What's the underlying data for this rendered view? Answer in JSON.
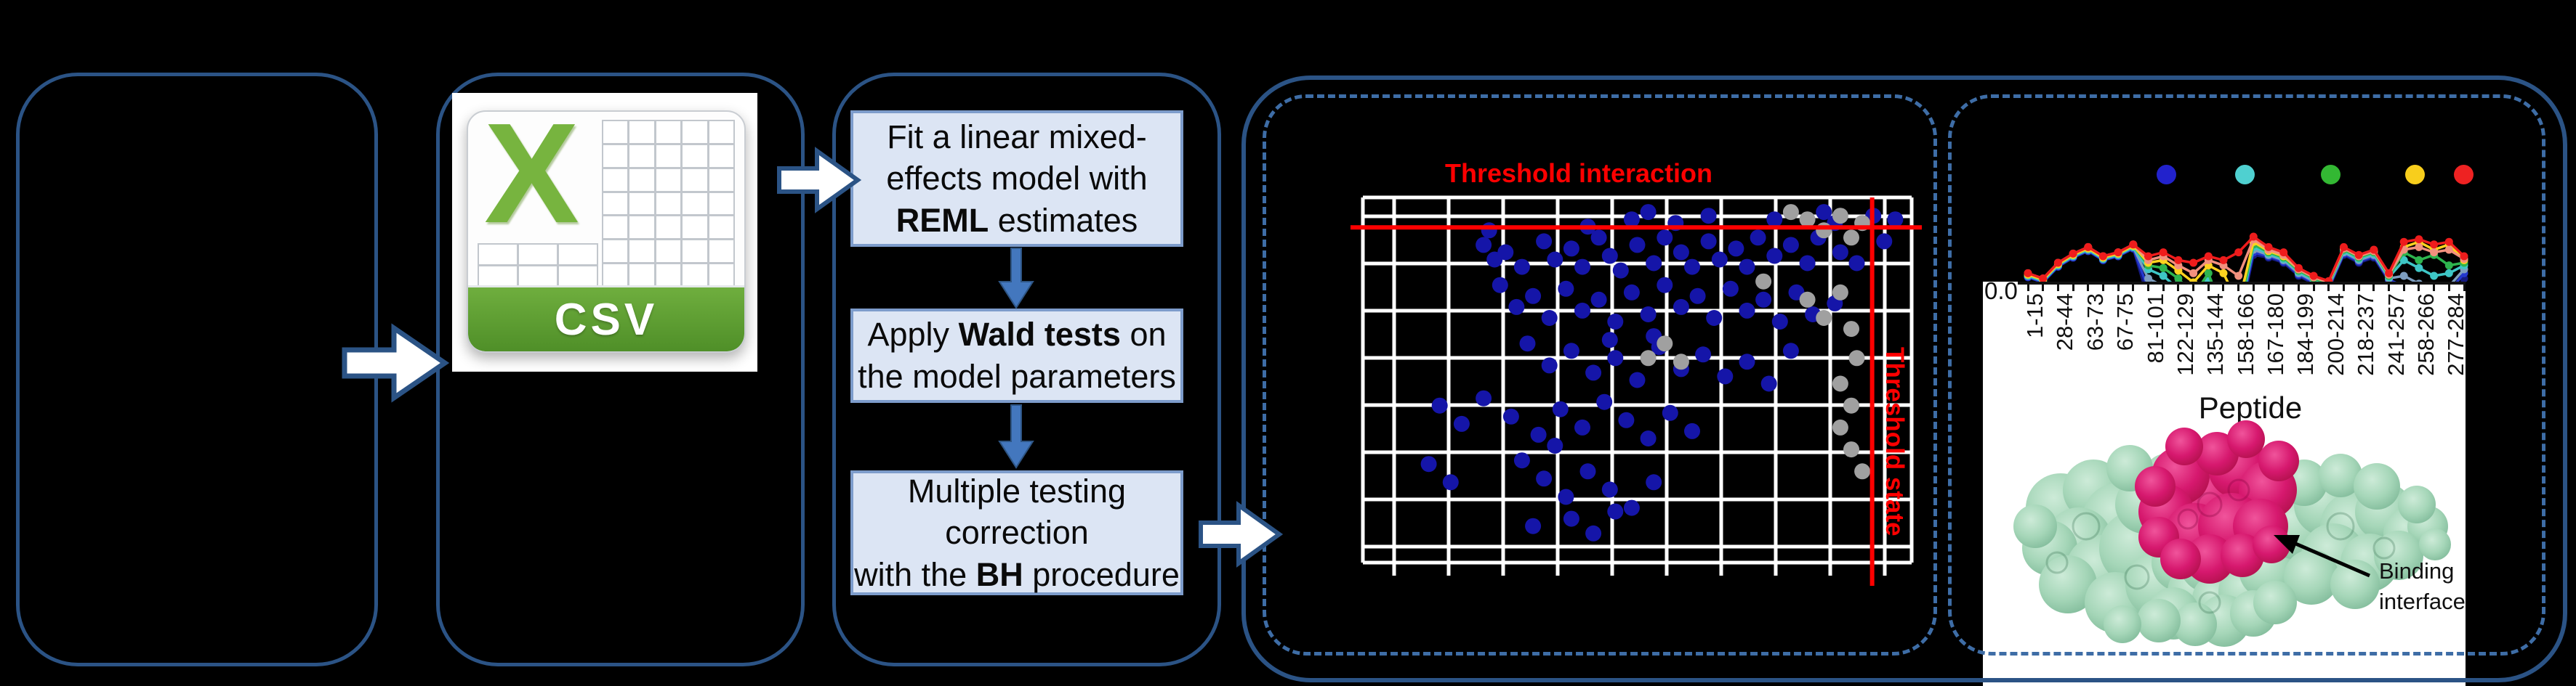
{
  "colors": {
    "background": "#000000",
    "panel_border": "#2B5385",
    "dashed_border": "#3E6DA6",
    "process_box_fill": "#DCE5F4",
    "process_box_border": "#7D9CCB",
    "threshold_red": "#FF0000",
    "scatter_blue": "#1515A8",
    "scatter_gray": "#A0A0A0",
    "csv_green": "#77B43F",
    "protein_green": "#A5D6B8",
    "protein_magenta": "#D6186E"
  },
  "csv": {
    "icon_name": "csv-file-icon",
    "band_label": "CSV",
    "x_glyph": "X"
  },
  "pipeline": {
    "steps": [
      {
        "lines": [
          [
            [
              "Fit a linear mixed-",
              false
            ]
          ],
          [
            [
              "effects model with",
              false
            ]
          ],
          [
            [
              "REML",
              true
            ],
            [
              " estimates",
              false
            ]
          ]
        ]
      },
      {
        "lines": [
          [
            [
              "Apply ",
              false
            ],
            [
              "Wald tests",
              true
            ],
            [
              " on",
              false
            ]
          ],
          [
            [
              "the model parameters",
              false
            ]
          ]
        ]
      },
      {
        "lines": [
          [
            [
              "Multiple testing",
              false
            ]
          ],
          [
            [
              "correction",
              false
            ]
          ],
          [
            [
              "with the ",
              false
            ],
            [
              "BH",
              true
            ],
            [
              " procedure",
              false
            ]
          ]
        ]
      }
    ]
  },
  "scatter_panel": {
    "title": "Threshold interaction",
    "side_label": "Threshold state"
  },
  "peptide_panel": {
    "y_origin_label": "0.0",
    "xlabel": "Peptide",
    "annotation_lines": [
      "Binding",
      "interface"
    ],
    "legend_dot_colors": [
      "#2222CC",
      "#4FD0D0",
      "#33B833",
      "#F8CE1C",
      "#EE2222"
    ]
  },
  "chart_data": [
    {
      "type": "scatter",
      "title": "Threshold interaction",
      "xlabel": "",
      "ylabel": "",
      "grid": true,
      "threshold_interaction_y_pct": 8.2,
      "threshold_state_x_pct": 92.8,
      "series": [
        {
          "name": "significant-blue",
          "color": "#1515A8",
          "points_pct": [
            [
              49,
              6
            ],
            [
              52,
              4
            ],
            [
              57,
              7
            ],
            [
              63,
              5
            ],
            [
              75,
              6
            ],
            [
              84,
              4
            ],
            [
              86,
              7
            ],
            [
              93,
              5
            ],
            [
              97,
              6
            ],
            [
              41,
              8
            ],
            [
              23,
              9
            ],
            [
              22,
              13
            ],
            [
              24,
              17
            ],
            [
              26,
              15
            ],
            [
              29,
              19
            ],
            [
              33,
              12
            ],
            [
              35,
              17
            ],
            [
              38,
              14
            ],
            [
              40,
              19
            ],
            [
              43,
              11
            ],
            [
              45,
              16
            ],
            [
              47,
              20
            ],
            [
              50,
              13
            ],
            [
              53,
              18
            ],
            [
              55,
              11
            ],
            [
              58,
              15
            ],
            [
              60,
              19
            ],
            [
              63,
              12
            ],
            [
              65,
              17
            ],
            [
              68,
              14
            ],
            [
              70,
              19
            ],
            [
              72,
              11
            ],
            [
              75,
              16
            ],
            [
              78,
              13
            ],
            [
              81,
              18
            ],
            [
              83,
              11
            ],
            [
              87,
              15
            ],
            [
              90,
              18
            ],
            [
              95,
              12
            ],
            [
              25,
              24
            ],
            [
              28,
              30
            ],
            [
              31,
              27
            ],
            [
              34,
              33
            ],
            [
              37,
              25
            ],
            [
              40,
              31
            ],
            [
              43,
              28
            ],
            [
              46,
              34
            ],
            [
              49,
              26
            ],
            [
              52,
              32
            ],
            [
              55,
              24
            ],
            [
              58,
              30
            ],
            [
              61,
              27
            ],
            [
              64,
              33
            ],
            [
              67,
              25
            ],
            [
              70,
              31
            ],
            [
              73,
              28
            ],
            [
              76,
              34
            ],
            [
              79,
              26
            ],
            [
              82,
              32
            ],
            [
              86,
              29
            ],
            [
              30,
              40
            ],
            [
              34,
              46
            ],
            [
              38,
              42
            ],
            [
              42,
              48
            ],
            [
              46,
              44
            ],
            [
              50,
              50
            ],
            [
              54,
              41
            ],
            [
              58,
              47
            ],
            [
              62,
              43
            ],
            [
              66,
              49
            ],
            [
              70,
              45
            ],
            [
              74,
              51
            ],
            [
              78,
              42
            ],
            [
              53,
              38
            ],
            [
              45,
              39
            ],
            [
              14,
              57
            ],
            [
              18,
              62
            ],
            [
              22,
              55
            ],
            [
              27,
              60
            ],
            [
              32,
              65
            ],
            [
              36,
              58
            ],
            [
              40,
              63
            ],
            [
              44,
              56
            ],
            [
              48,
              61
            ],
            [
              52,
              66
            ],
            [
              56,
              59
            ],
            [
              60,
              64
            ],
            [
              35,
              68
            ],
            [
              29,
              72
            ],
            [
              33,
              77
            ],
            [
              37,
              82
            ],
            [
              41,
              75
            ],
            [
              45,
              80
            ],
            [
              49,
              85
            ],
            [
              53,
              78
            ],
            [
              38,
              88
            ],
            [
              42,
              92
            ],
            [
              46,
              86
            ],
            [
              31,
              90
            ],
            [
              12,
              73
            ],
            [
              16,
              78
            ]
          ]
        },
        {
          "name": "nonsignificant-gray",
          "color": "#A0A0A0",
          "points_pct": [
            [
              78,
              4
            ],
            [
              81,
              6
            ],
            [
              84,
              9
            ],
            [
              87,
              5
            ],
            [
              89,
              11
            ],
            [
              91,
              7
            ],
            [
              55,
              40
            ],
            [
              58,
              45
            ],
            [
              52,
              44
            ],
            [
              81,
              28
            ],
            [
              84,
              33
            ],
            [
              87,
              26
            ],
            [
              89,
              36
            ],
            [
              90,
              44
            ],
            [
              87,
              51
            ],
            [
              89,
              57
            ],
            [
              87,
              63
            ],
            [
              89,
              69
            ],
            [
              91,
              75
            ],
            [
              73,
              23
            ]
          ]
        }
      ]
    },
    {
      "type": "line",
      "xlabel": "Peptide",
      "ylabel": "",
      "y_origin_label": "0.0",
      "categories": [
        "1-15",
        "28-44",
        "63-73",
        "67-75",
        "81-101",
        "122-129",
        "135-144",
        "158-166",
        "167-180",
        "184-199",
        "200-214",
        "218-237",
        "241-257",
        "258-266",
        "277-284"
      ],
      "points_per_category": 2,
      "series": [
        {
          "name": "navy",
          "color": "#151A80",
          "values": [
            39,
            35,
            47,
            54,
            59,
            52,
            55,
            61,
            22,
            18,
            20,
            3,
            18,
            2,
            3,
            56,
            54,
            50,
            40,
            34,
            30,
            56,
            50,
            54,
            36,
            24,
            18,
            12,
            20,
            38
          ]
        },
        {
          "name": "blue",
          "color": "#2438CF",
          "values": [
            39,
            35,
            47,
            54,
            59,
            52,
            55,
            61,
            30,
            26,
            26,
            6,
            24,
            4,
            6,
            58,
            55,
            51,
            41,
            35,
            31,
            57,
            51,
            55,
            37,
            32,
            26,
            20,
            28,
            42
          ]
        },
        {
          "name": "slate",
          "color": "#7E9EC0",
          "values": [
            40,
            36,
            48,
            55,
            60,
            53,
            56,
            62,
            38,
            32,
            34,
            18,
            30,
            8,
            22,
            60,
            56,
            52,
            42,
            36,
            32,
            58,
            52,
            56,
            38,
            40,
            34,
            28,
            32,
            45
          ]
        },
        {
          "name": "cyan",
          "color": "#3EC6C6",
          "values": [
            40,
            36,
            48,
            55,
            60,
            53,
            56,
            62,
            45,
            40,
            30,
            14,
            36,
            6,
            8,
            62,
            57,
            53,
            43,
            37,
            33,
            59,
            53,
            57,
            39,
            52,
            46,
            40,
            42,
            48
          ]
        },
        {
          "name": "green",
          "color": "#2EB44E",
          "values": [
            41,
            37,
            49,
            56,
            61,
            54,
            57,
            63,
            48,
            46,
            38,
            25,
            42,
            10,
            12,
            64,
            58,
            54,
            44,
            38,
            34,
            60,
            54,
            58,
            40,
            58,
            52,
            56,
            48,
            50
          ]
        },
        {
          "name": "yellow",
          "color": "#FFD21F",
          "values": [
            41,
            37,
            49,
            56,
            61,
            54,
            57,
            63,
            50,
            52,
            44,
            35,
            48,
            42,
            18,
            66,
            59,
            55,
            45,
            39,
            35,
            61,
            55,
            59,
            41,
            62,
            66,
            60,
            64,
            52
          ]
        },
        {
          "name": "salmon",
          "color": "#F2907E",
          "values": [
            42,
            38,
            50,
            57,
            62,
            55,
            58,
            64,
            52,
            55,
            48,
            42,
            52,
            48,
            40,
            68,
            60,
            56,
            45,
            39,
            35,
            61,
            55,
            59,
            41,
            60,
            62,
            58,
            60,
            53
          ]
        },
        {
          "name": "red",
          "color": "#EE1C1C",
          "values": [
            42,
            38,
            50,
            57,
            62,
            55,
            58,
            64,
            55,
            58,
            52,
            50,
            55,
            52,
            58,
            70,
            62,
            58,
            46,
            40,
            36,
            62,
            56,
            60,
            42,
            66,
            68,
            64,
            66,
            55
          ]
        }
      ],
      "legend_position": "top",
      "legend_dot_colors": [
        "#2222CC",
        "#4FD0D0",
        "#33B833",
        "#F8CE1C",
        "#EE2222"
      ]
    }
  ]
}
